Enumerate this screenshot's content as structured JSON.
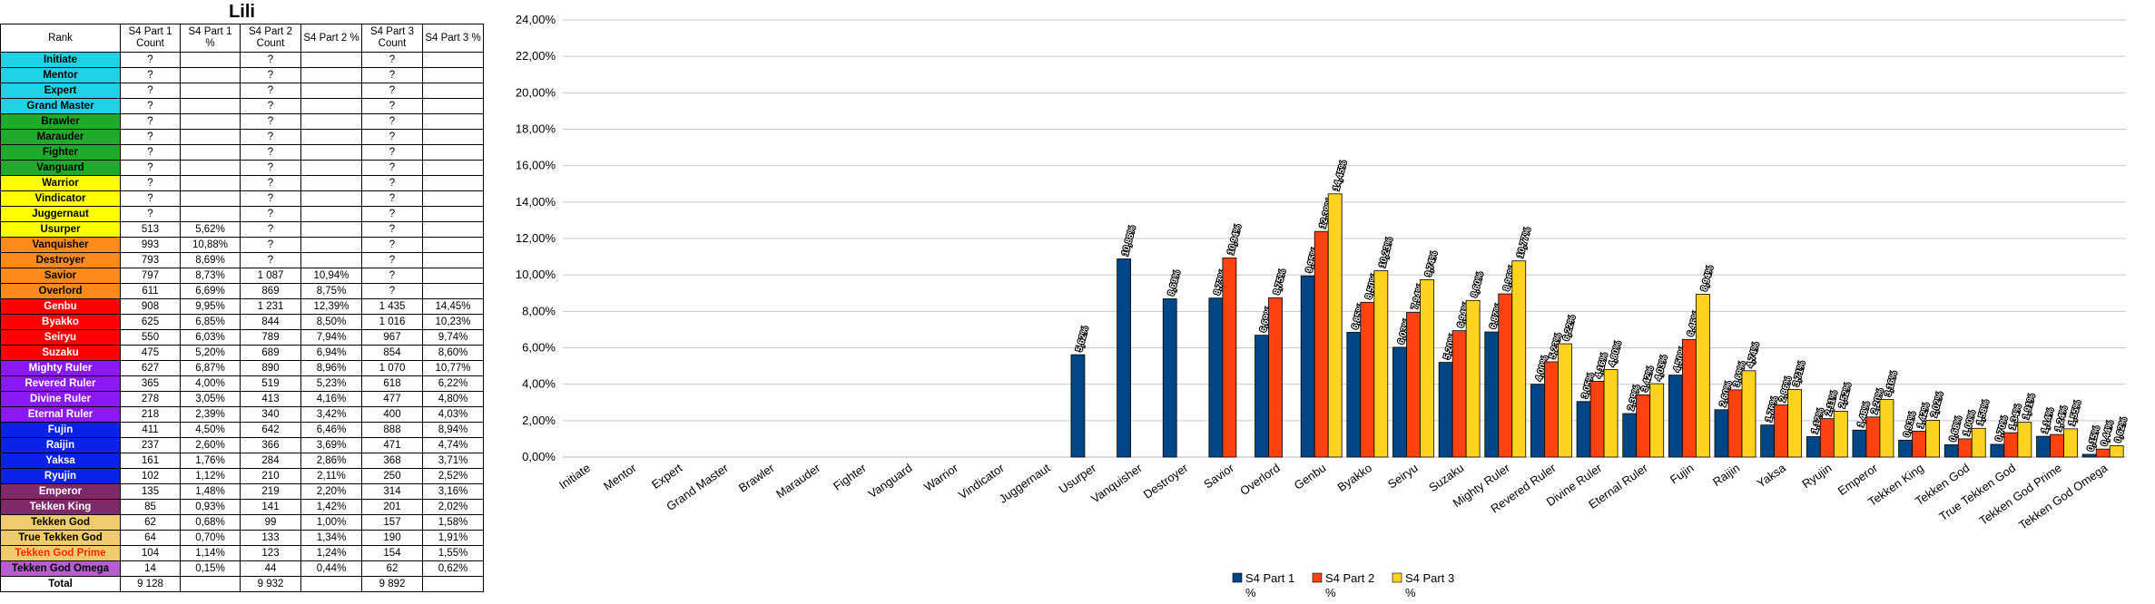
{
  "table": {
    "title": "Lili",
    "headers": [
      "Rank",
      "S4 Part 1 Count",
      "S4 Part 1 %",
      "S4 Part 2 Count",
      "S4 Part 2 %",
      "S4 Part 3 Count",
      "S4 Part 3 %"
    ],
    "rows": [
      {
        "rank": "Initiate",
        "c1": "?",
        "p1": "",
        "c2": "?",
        "p2": "",
        "c3": "?",
        "p3": "",
        "color": "#21d2e6",
        "text": "#000000"
      },
      {
        "rank": "Mentor",
        "c1": "?",
        "p1": "",
        "c2": "?",
        "p2": "",
        "c3": "?",
        "p3": "",
        "color": "#21d2e6",
        "text": "#000000"
      },
      {
        "rank": "Expert",
        "c1": "?",
        "p1": "",
        "c2": "?",
        "p2": "",
        "c3": "?",
        "p3": "",
        "color": "#21d2e6",
        "text": "#000000"
      },
      {
        "rank": "Grand Master",
        "c1": "?",
        "p1": "",
        "c2": "?",
        "p2": "",
        "c3": "?",
        "p3": "",
        "color": "#21d2e6",
        "text": "#000000"
      },
      {
        "rank": "Brawler",
        "c1": "?",
        "p1": "",
        "c2": "?",
        "p2": "",
        "c3": "?",
        "p3": "",
        "color": "#1faa2b",
        "text": "#000000"
      },
      {
        "rank": "Marauder",
        "c1": "?",
        "p1": "",
        "c2": "?",
        "p2": "",
        "c3": "?",
        "p3": "",
        "color": "#1faa2b",
        "text": "#000000"
      },
      {
        "rank": "Fighter",
        "c1": "?",
        "p1": "",
        "c2": "?",
        "p2": "",
        "c3": "?",
        "p3": "",
        "color": "#1faa2b",
        "text": "#000000"
      },
      {
        "rank": "Vanguard",
        "c1": "?",
        "p1": "",
        "c2": "?",
        "p2": "",
        "c3": "?",
        "p3": "",
        "color": "#1faa2b",
        "text": "#000000"
      },
      {
        "rank": "Warrior",
        "c1": "?",
        "p1": "",
        "c2": "?",
        "p2": "",
        "c3": "?",
        "p3": "",
        "color": "#ffff00",
        "text": "#000000"
      },
      {
        "rank": "Vindicator",
        "c1": "?",
        "p1": "",
        "c2": "?",
        "p2": "",
        "c3": "?",
        "p3": "",
        "color": "#ffff00",
        "text": "#000000"
      },
      {
        "rank": "Juggernaut",
        "c1": "?",
        "p1": "",
        "c2": "?",
        "p2": "",
        "c3": "?",
        "p3": "",
        "color": "#ffff00",
        "text": "#000000"
      },
      {
        "rank": "Usurper",
        "c1": "513",
        "p1": "5,62%",
        "c2": "?",
        "p2": "",
        "c3": "?",
        "p3": "",
        "color": "#ffff00",
        "text": "#000000"
      },
      {
        "rank": "Vanquisher",
        "c1": "993",
        "p1": "10,88%",
        "c2": "?",
        "p2": "",
        "c3": "?",
        "p3": "",
        "color": "#ff8a1c",
        "text": "#000000"
      },
      {
        "rank": "Destroyer",
        "c1": "793",
        "p1": "8,69%",
        "c2": "?",
        "p2": "",
        "c3": "?",
        "p3": "",
        "color": "#ff8a1c",
        "text": "#000000"
      },
      {
        "rank": "Savior",
        "c1": "797",
        "p1": "8,73%",
        "c2": "1 087",
        "p2": "10,94%",
        "c3": "?",
        "p3": "",
        "color": "#ff8a1c",
        "text": "#000000"
      },
      {
        "rank": "Overlord",
        "c1": "611",
        "p1": "6,69%",
        "c2": "869",
        "p2": "8,75%",
        "c3": "?",
        "p3": "",
        "color": "#ff8a1c",
        "text": "#000000"
      },
      {
        "rank": "Genbu",
        "c1": "908",
        "p1": "9,95%",
        "c2": "1 231",
        "p2": "12,39%",
        "c3": "1 435",
        "p3": "14,45%",
        "color": "#ff0000",
        "text": "#ffffff"
      },
      {
        "rank": "Byakko",
        "c1": "625",
        "p1": "6,85%",
        "c2": "844",
        "p2": "8,50%",
        "c3": "1 016",
        "p3": "10,23%",
        "color": "#ff0000",
        "text": "#ffffff"
      },
      {
        "rank": "Seiryu",
        "c1": "550",
        "p1": "6,03%",
        "c2": "789",
        "p2": "7,94%",
        "c3": "967",
        "p3": "9,74%",
        "color": "#ff0000",
        "text": "#ffffff"
      },
      {
        "rank": "Suzaku",
        "c1": "475",
        "p1": "5,20%",
        "c2": "689",
        "p2": "6,94%",
        "c3": "854",
        "p3": "8,60%",
        "color": "#ff0000",
        "text": "#ffffff"
      },
      {
        "rank": "Mighty Ruler",
        "c1": "627",
        "p1": "6,87%",
        "c2": "890",
        "p2": "8,96%",
        "c3": "1 070",
        "p3": "10,77%",
        "color": "#8a19f5",
        "text": "#ffffff"
      },
      {
        "rank": "Revered Ruler",
        "c1": "365",
        "p1": "4,00%",
        "c2": "519",
        "p2": "5,23%",
        "c3": "618",
        "p3": "6,22%",
        "color": "#8a19f5",
        "text": "#ffffff"
      },
      {
        "rank": "Divine Ruler",
        "c1": "278",
        "p1": "3,05%",
        "c2": "413",
        "p2": "4,16%",
        "c3": "477",
        "p3": "4,80%",
        "color": "#8a19f5",
        "text": "#ffffff"
      },
      {
        "rank": "Eternal Ruler",
        "c1": "218",
        "p1": "2,39%",
        "c2": "340",
        "p2": "3,42%",
        "c3": "400",
        "p3": "4,03%",
        "color": "#8a19f5",
        "text": "#ffffff"
      },
      {
        "rank": "Fujin",
        "c1": "411",
        "p1": "4,50%",
        "c2": "642",
        "p2": "6,46%",
        "c3": "888",
        "p3": "8,94%",
        "color": "#0a22e8",
        "text": "#ffffff"
      },
      {
        "rank": "Raijin",
        "c1": "237",
        "p1": "2,60%",
        "c2": "366",
        "p2": "3,69%",
        "c3": "471",
        "p3": "4,74%",
        "color": "#0a22e8",
        "text": "#ffffff"
      },
      {
        "rank": "Yaksa",
        "c1": "161",
        "p1": "1,76%",
        "c2": "284",
        "p2": "2,86%",
        "c3": "368",
        "p3": "3,71%",
        "color": "#0a22e8",
        "text": "#ffffff"
      },
      {
        "rank": "Ryujin",
        "c1": "102",
        "p1": "1,12%",
        "c2": "210",
        "p2": "2,11%",
        "c3": "250",
        "p3": "2,52%",
        "color": "#0a22e8",
        "text": "#ffffff"
      },
      {
        "rank": "Emperor",
        "c1": "135",
        "p1": "1,48%",
        "c2": "219",
        "p2": "2,20%",
        "c3": "314",
        "p3": "3,16%",
        "color": "#7d2a6b",
        "text": "#ffffff"
      },
      {
        "rank": "Tekken King",
        "c1": "85",
        "p1": "0,93%",
        "c2": "141",
        "p2": "1,42%",
        "c3": "201",
        "p3": "2,02%",
        "color": "#7d2a6b",
        "text": "#ffffff"
      },
      {
        "rank": "Tekken God",
        "c1": "62",
        "p1": "0,68%",
        "c2": "99",
        "p2": "1,00%",
        "c3": "157",
        "p3": "1,58%",
        "color": "#f2cb6e",
        "text": "#000000"
      },
      {
        "rank": "True Tekken God",
        "c1": "64",
        "p1": "0,70%",
        "c2": "133",
        "p2": "1,34%",
        "c3": "190",
        "p3": "1,91%",
        "color": "#f2cb6e",
        "text": "#000000"
      },
      {
        "rank": "Tekken God Prime",
        "c1": "104",
        "p1": "1,14%",
        "c2": "123",
        "p2": "1,24%",
        "c3": "154",
        "p3": "1,55%",
        "color": "#f2cb6e",
        "text": "#ff2a00"
      },
      {
        "rank": "Tekken God Omega",
        "c1": "14",
        "p1": "0,15%",
        "c2": "44",
        "p2": "0,44%",
        "c3": "62",
        "p3": "0,62%",
        "color": "#b65ed0",
        "text": "#000000"
      }
    ],
    "total": {
      "rank": "Total",
      "c1": "9 128",
      "p1": "",
      "c2": "9 932",
      "p2": "",
      "c3": "9 892",
      "p3": ""
    }
  },
  "chart_data": {
    "type": "bar",
    "title": "",
    "xlabel": "",
    "ylabel": "",
    "ylim": [
      0,
      24
    ],
    "yticks": [
      0,
      2,
      4,
      6,
      8,
      10,
      12,
      14,
      16,
      18,
      20,
      22,
      24
    ],
    "ytick_labels": [
      "0,00%",
      "2,00%",
      "4,00%",
      "6,00%",
      "8,00%",
      "10,00%",
      "12,00%",
      "14,00%",
      "16,00%",
      "18,00%",
      "20,00%",
      "22,00%",
      "24,00%"
    ],
    "grid": true,
    "legend_position": "bottom",
    "categories": [
      "Initiate",
      "Mentor",
      "Expert",
      "Grand Master",
      "Brawler",
      "Marauder",
      "Fighter",
      "Vanguard",
      "Warrior",
      "Vindicator",
      "Juggernaut",
      "Usurper",
      "Vanquisher",
      "Destroyer",
      "Savior",
      "Overlord",
      "Genbu",
      "Byakko",
      "Seiryu",
      "Suzaku",
      "Mighty Ruler",
      "Revered Ruler",
      "Divine Ruler",
      "Eternal Ruler",
      "Fujin",
      "Raijin",
      "Yaksa",
      "Ryujin",
      "Emperor",
      "Tekken King",
      "Tekken God",
      "True Tekken God",
      "Tekken God Prime",
      "Tekken God Omega"
    ],
    "series": [
      {
        "name": "S4 Part 1 %",
        "color": "#004586",
        "values": [
          null,
          null,
          null,
          null,
          null,
          null,
          null,
          null,
          null,
          null,
          null,
          5.62,
          10.88,
          8.69,
          8.73,
          6.69,
          9.95,
          6.85,
          6.03,
          5.2,
          6.87,
          4.0,
          3.05,
          2.39,
          4.5,
          2.6,
          1.76,
          1.12,
          1.48,
          0.93,
          0.68,
          0.7,
          1.14,
          0.15
        ],
        "labels": [
          "",
          "",
          "",
          "",
          "",
          "",
          "",
          "",
          "",
          "",
          "",
          "5,62%",
          "10,88%",
          "8,69%",
          "8,73%",
          "6,69%",
          "9,95%",
          "6,85%",
          "6,03%",
          "5,20%",
          "6,87%",
          "4,00%",
          "3,05%",
          "2,39%",
          "4,50%",
          "2,60%",
          "1,76%",
          "1,12%",
          "1,48%",
          "0,93%",
          "0,68%",
          "0,70%",
          "1,14%",
          "0,15%"
        ]
      },
      {
        "name": "S4 Part 2 %",
        "color": "#ff420e",
        "values": [
          null,
          null,
          null,
          null,
          null,
          null,
          null,
          null,
          null,
          null,
          null,
          null,
          null,
          null,
          10.94,
          8.75,
          12.39,
          8.5,
          7.94,
          6.94,
          8.96,
          5.23,
          4.16,
          3.42,
          6.46,
          3.69,
          2.86,
          2.11,
          2.2,
          1.42,
          1.0,
          1.34,
          1.24,
          0.44
        ],
        "labels": [
          "",
          "",
          "",
          "",
          "",
          "",
          "",
          "",
          "",
          "",
          "",
          "",
          "",
          "",
          "10,94%",
          "8,75%",
          "12,39%",
          "8,50%",
          "7,94%",
          "6,94%",
          "8,96%",
          "5,23%",
          "4,16%",
          "3,42%",
          "6,46%",
          "3,69%",
          "2,86%",
          "2,11%",
          "2,20%",
          "1,42%",
          "1,00%",
          "1,34%",
          "1,24%",
          "0,44%"
        ]
      },
      {
        "name": "S4 Part 3 %",
        "color": "#ffd320",
        "values": [
          null,
          null,
          null,
          null,
          null,
          null,
          null,
          null,
          null,
          null,
          null,
          null,
          null,
          null,
          null,
          null,
          14.45,
          10.23,
          9.74,
          8.6,
          10.77,
          6.22,
          4.8,
          4.03,
          8.94,
          4.74,
          3.71,
          2.52,
          3.16,
          2.02,
          1.58,
          1.91,
          1.55,
          0.62
        ],
        "labels": [
          "",
          "",
          "",
          "",
          "",
          "",
          "",
          "",
          "",
          "",
          "",
          "",
          "",
          "",
          "",
          "",
          "14,45%",
          "10,23%",
          "9,74%",
          "8,60%",
          "10,77%",
          "6,22%",
          "4,80%",
          "4,03%",
          "8,94%",
          "4,74%",
          "3,71%",
          "2,52%",
          "3,16%",
          "2,02%",
          "1,58%",
          "1,91%",
          "1,55%",
          "0,62%"
        ]
      }
    ],
    "legend": [
      {
        "line1": "S4 Part 1",
        "line2": "%"
      },
      {
        "line1": "S4 Part 2",
        "line2": "%"
      },
      {
        "line1": "S4 Part 3",
        "line2": "%"
      }
    ]
  }
}
